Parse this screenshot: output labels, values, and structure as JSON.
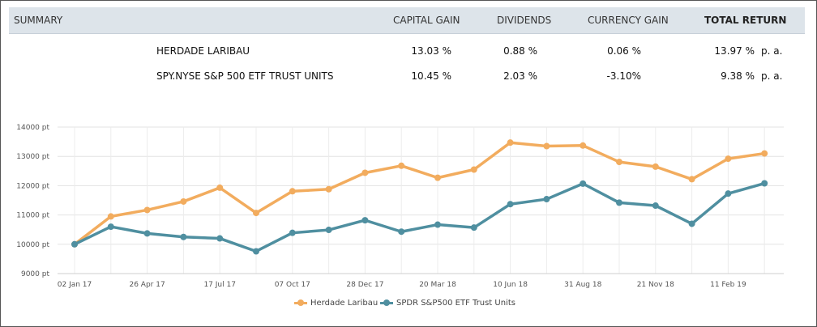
{
  "summary": {
    "headers": {
      "summary": "SUMMARY",
      "capital_gain": "CAPITAL GAIN",
      "dividends": "DIVIDENDS",
      "currency_gain": "CURRENCY GAIN",
      "total_return": "TOTAL RETURN"
    },
    "rows": [
      {
        "name": "HERDADE LARIBAU",
        "capital_gain": "13.03 %",
        "dividends": "0.88 %",
        "currency_gain": "0.06 %",
        "total_return": "13.97 %",
        "period": "p. a."
      },
      {
        "name": "SPY.NYSE  S&P 500 ETF TRUST UNITS",
        "capital_gain": "10.45 %",
        "dividends": "2.03 %",
        "currency_gain": "-3.10%",
        "total_return": "9.38 %",
        "period": "p. a."
      }
    ]
  },
  "chart_data": {
    "type": "line",
    "title": "",
    "xlabel": "",
    "ylabel": "",
    "ylim": [
      9000,
      14000
    ],
    "yticks": [
      9000,
      10000,
      11000,
      12000,
      13000,
      14000
    ],
    "ytick_labels": [
      "9000 pt",
      "10000 pt",
      "11000 pt",
      "12000 pt",
      "13000 pt",
      "14000 pt"
    ],
    "num_points": 20,
    "x_tick_labels": [
      {
        "index": 0,
        "label": "02 Jan 17"
      },
      {
        "index": 2,
        "label": "26 Apr 17"
      },
      {
        "index": 4,
        "label": "17 Jul 17"
      },
      {
        "index": 6,
        "label": "07 Oct 17"
      },
      {
        "index": 8,
        "label": "28 Dec 17"
      },
      {
        "index": 10,
        "label": "20 Mar 18"
      },
      {
        "index": 12,
        "label": "10 Jun 18"
      },
      {
        "index": 14,
        "label": "31 Aug 18"
      },
      {
        "index": 16,
        "label": "21 Nov 18"
      },
      {
        "index": 18,
        "label": "11 Feb 19"
      }
    ],
    "grid": true,
    "legend_position": "bottom-center",
    "series": [
      {
        "name": "Herdade Laribau",
        "color": "#f2ac5e",
        "values": [
          10000,
          10950,
          11170,
          11460,
          11930,
          11070,
          11810,
          11880,
          12440,
          12680,
          12270,
          12550,
          13470,
          13350,
          13370,
          12810,
          12650,
          12220,
          12920,
          13100
        ]
      },
      {
        "name": "SPDR S&P500 ETF Trust Units",
        "color": "#4f8fa0",
        "values": [
          10000,
          10600,
          10370,
          10250,
          10200,
          9760,
          10390,
          10490,
          10820,
          10430,
          10670,
          10570,
          11370,
          11540,
          12070,
          11420,
          11320,
          10700,
          11730,
          12080
        ]
      }
    ]
  }
}
